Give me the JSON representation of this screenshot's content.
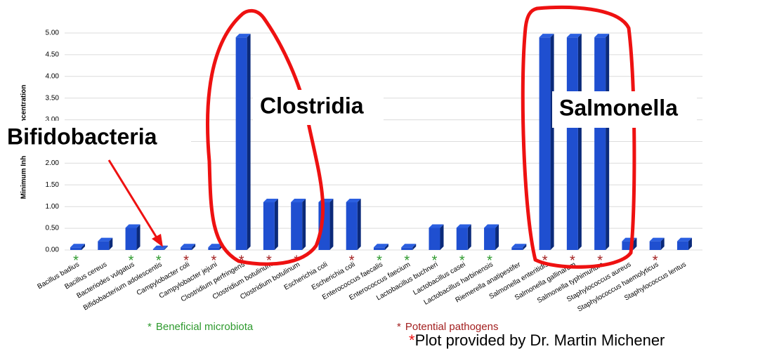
{
  "chart_data": {
    "type": "bar",
    "y_label": "Minimum Inhibitory Concentration",
    "categories": [
      "Bacillus badius",
      "Bacillus cereus",
      "Bacteriodes vulgatus",
      "Bifidobacterium adolescentis",
      "Campylobacter coli",
      "Campylobacter jejuni",
      "Clostridium perfringens",
      "Clostridium botulinum",
      "Clostridium botulinum",
      "Escherichia coli",
      "Escherichia coli",
      "Enterococcus faecalis",
      "Enterococcus faecium",
      "Lactobacillus buchneri",
      "Lactobacillus casei",
      "Lactobacillus harbinensis",
      "Riemerella anatipestifer",
      "Salmonella enteritidis",
      "Salmonella gallinarum",
      "Salmonella typhimurium",
      "Staphylococcus aureus",
      "Staphylococcus haemolyticus",
      "Staphylococcus lentus"
    ],
    "values": [
      0.06,
      0.2,
      0.51,
      0.02,
      0.06,
      0.06,
      4.9,
      1.1,
      1.1,
      1.1,
      1.1,
      0.06,
      0.06,
      0.51,
      0.51,
      0.51,
      0.06,
      4.9,
      4.9,
      4.9,
      0.2,
      0.2,
      0.2
    ],
    "color": "#1f4fd0",
    "markers": [
      0,
      null,
      0,
      0,
      1,
      1,
      1,
      1,
      1,
      null,
      1,
      0,
      0,
      0,
      0,
      0,
      null,
      1,
      1,
      1,
      null,
      1,
      null
    ],
    "legend": [
      {
        "symbol": "*",
        "label": "Beneficial microbiota",
        "color": "#2e9a2e"
      },
      {
        "symbol": "*",
        "label": "Potential pathogens",
        "color": "#a32020"
      }
    ],
    "ylim": [
      0,
      5
    ],
    "yticks": [
      {
        "value": 0,
        "label": "0.00"
      },
      {
        "value": 0.5,
        "label": "0.50"
      },
      {
        "value": 1,
        "label": "1.00"
      },
      {
        "value": 1.5,
        "label": "1.50"
      },
      {
        "value": 2,
        "label": "2.00"
      },
      {
        "value": 2.5,
        "label": "2.50"
      },
      {
        "value": 3,
        "label": "3.00"
      },
      {
        "value": 3.5,
        "label": "3.50"
      },
      {
        "value": 4,
        "label": "4.00"
      },
      {
        "value": 4.5,
        "label": "4.50"
      },
      {
        "value": 5,
        "label": "5.00"
      }
    ],
    "grid": true,
    "annotations": [
      "Clostridia",
      "Salmonella",
      "Bifidobacteria"
    ],
    "footnote": {
      "symbol": "*",
      "text": "Plot provided by Dr. Martin Michener"
    }
  }
}
